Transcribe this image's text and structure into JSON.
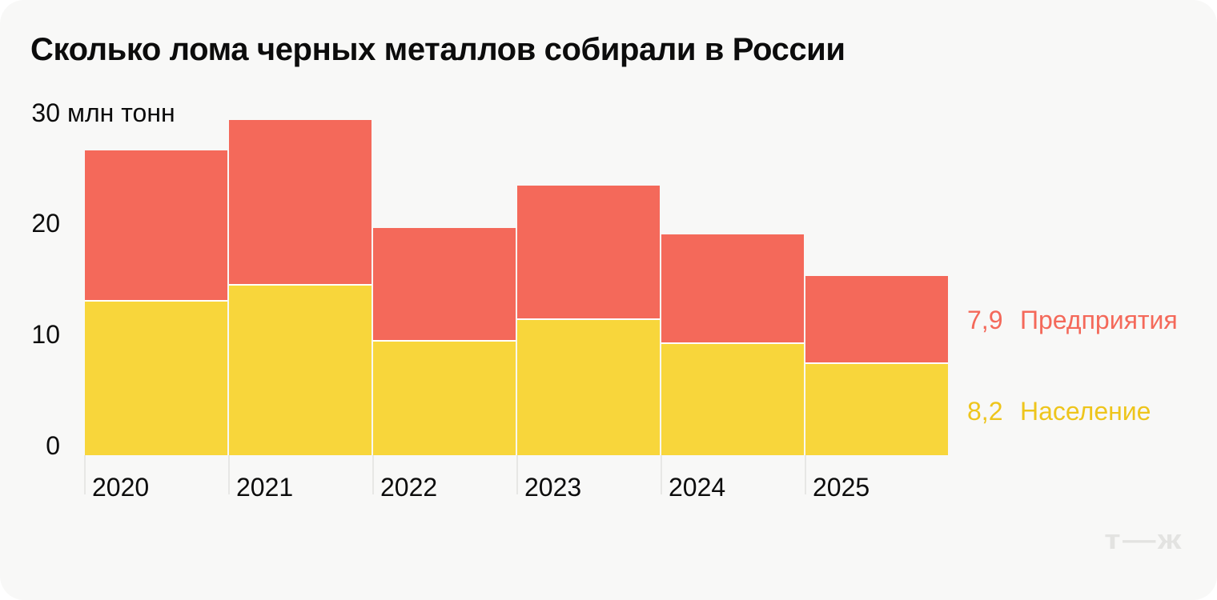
{
  "title": "Сколько лома черных металлов собирали в России",
  "colors": {
    "card_background": "#f8f8f7",
    "page_background": "#ffffff",
    "text": "#0c0c0c",
    "enterprises_bar": "#f4695a",
    "population_bar": "#f8d63b",
    "enterprises_legend_text": "#f4695a",
    "population_legend_text": "#eec51c",
    "axis_tick_line": "#e7e7e5",
    "segment_separator": "#ffffff",
    "logo": "#e3e3e1"
  },
  "chart_data": {
    "type": "bar",
    "subtype": "stacked",
    "title": "Сколько лома черных металлов собирали в России",
    "unit_suffix": "млн тонн",
    "ylim": [
      0,
      30
    ],
    "grid": "off",
    "legend_position": "right",
    "y_ticks": [
      {
        "value": 30,
        "label": "30",
        "suffix": "млн тонн"
      },
      {
        "value": 20,
        "label": "20",
        "suffix": ""
      },
      {
        "value": 10,
        "label": "10",
        "suffix": ""
      },
      {
        "value": 0,
        "label": "0",
        "suffix": ""
      }
    ],
    "categories": [
      "2020",
      "2021",
      "2022",
      "2023",
      "2024",
      "2025"
    ],
    "series": [
      {
        "name": "Население",
        "color_key": "population_bar",
        "stack_order": "bottom",
        "values": [
          13.8,
          15.3,
          10.2,
          12.2,
          10.0,
          8.2
        ]
      },
      {
        "name": "Предприятия",
        "color_key": "enterprises_bar",
        "stack_order": "top",
        "values": [
          13.6,
          14.9,
          10.2,
          12.1,
          9.9,
          7.9
        ]
      }
    ],
    "legend": [
      {
        "value_label": "7,9",
        "name": "Предприятия",
        "color_key": "enterprises_legend_text"
      },
      {
        "value_label": "8,2",
        "name": "Население",
        "color_key": "population_legend_text"
      }
    ]
  },
  "footer": {
    "logo_text": "т—ж"
  }
}
